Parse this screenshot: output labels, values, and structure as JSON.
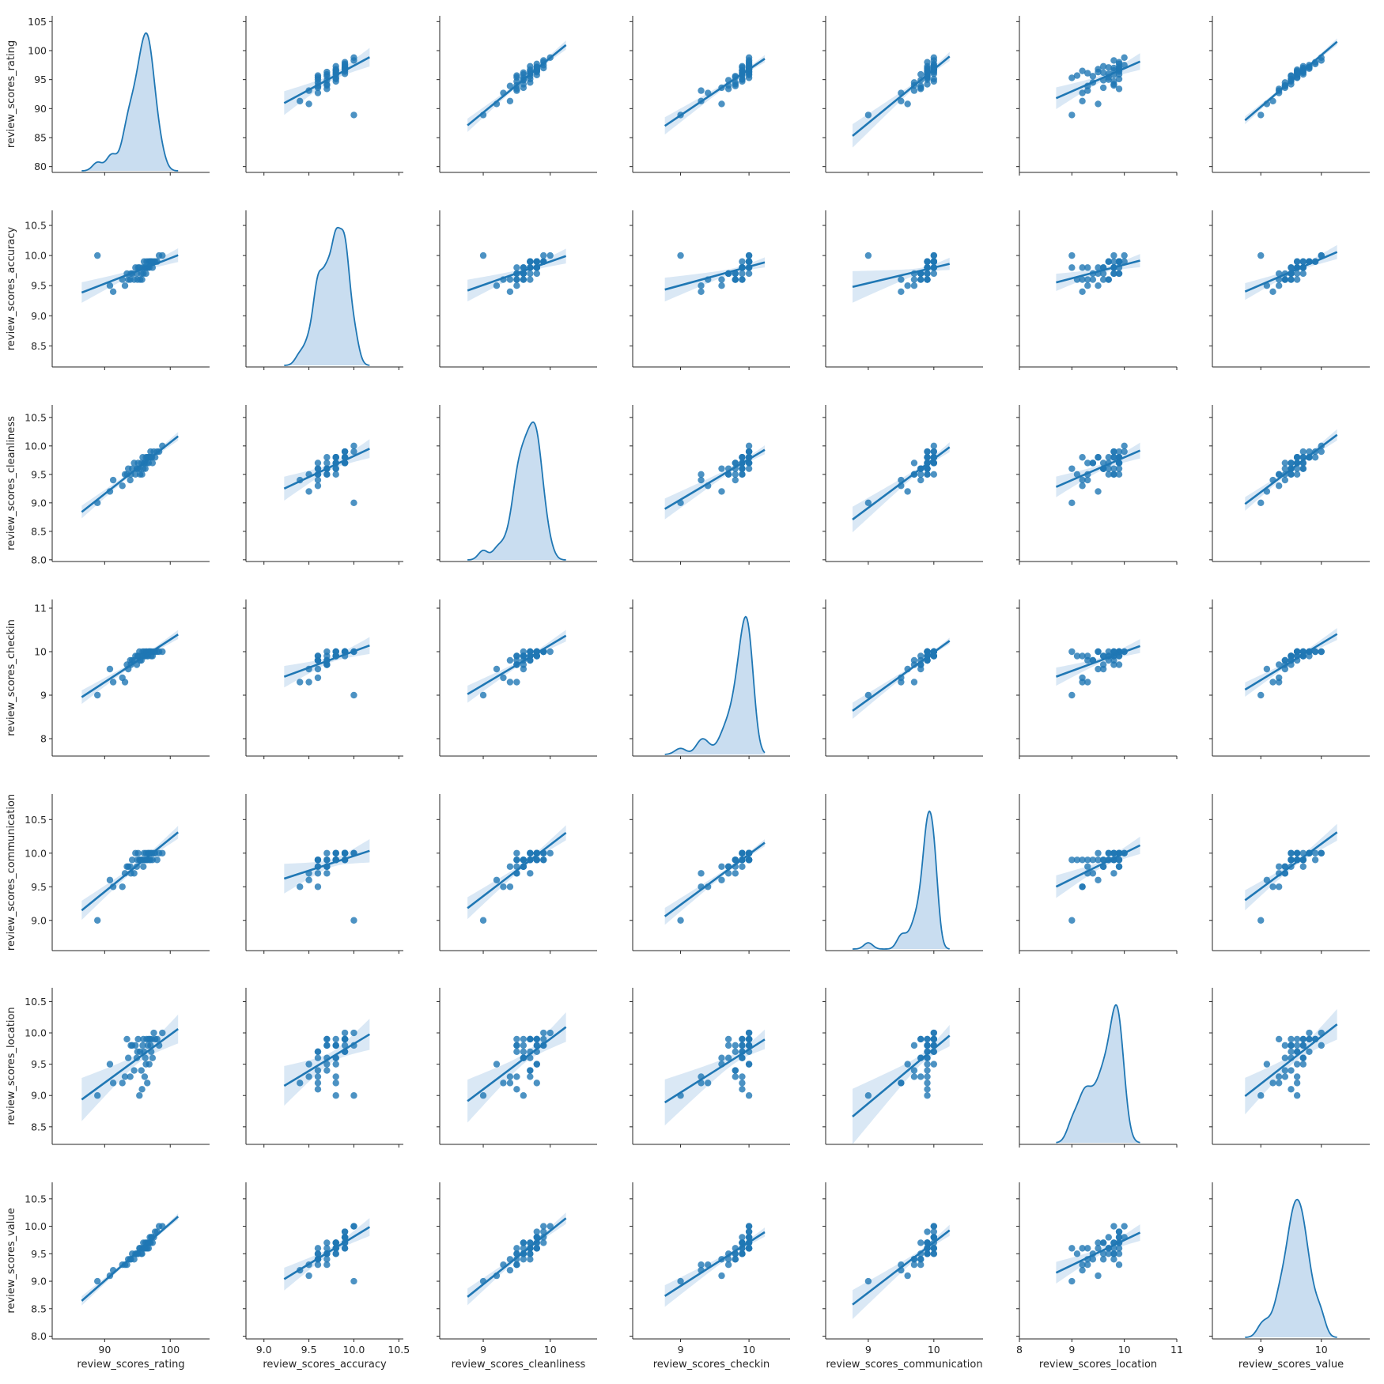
{
  "chart_data": {
    "type": "scatter",
    "subtype": "pairplot",
    "series_color": "#1f77b4",
    "band_color": "#c6dbef",
    "diagonal": "kde",
    "off_diagonal": "scatter-with-regression",
    "variables": [
      {
        "name": "review_scores_rating",
        "label": "review_scores_rating",
        "lim": [
          82,
          106
        ],
        "xticks": [
          90,
          100
        ],
        "yticks": [
          80,
          85,
          90,
          95,
          100,
          105
        ],
        "ylim": [
          79,
          106
        ],
        "ytick_labels": [
          "80",
          "85",
          "90",
          "95",
          "100",
          "105"
        ],
        "xtick_labels": [
          "90",
          "100"
        ]
      },
      {
        "name": "review_scores_accuracy",
        "label": "review_scores_accuracy",
        "lim": [
          8.8,
          10.55
        ],
        "xticks": [
          9.0,
          9.5,
          10.0,
          10.5
        ],
        "yticks": [
          8.5,
          9.0,
          9.5,
          10.0,
          10.5
        ],
        "ylim": [
          8.15,
          10.75
        ],
        "ytick_labels": [
          "8.5",
          "9.0",
          "9.5",
          "10.0",
          "10.5"
        ],
        "xtick_labels": [
          "9.0",
          "9.5",
          "10.0",
          "10.5"
        ]
      },
      {
        "name": "review_scores_cleanliness",
        "label": "review_scores_cleanliness",
        "lim": [
          8.35,
          10.7
        ],
        "xticks": [
          9,
          10
        ],
        "yticks": [
          8.0,
          8.5,
          9.0,
          9.5,
          10.0,
          10.5
        ],
        "ylim": [
          7.97,
          10.72
        ],
        "ytick_labels": [
          "8.0",
          "8.5",
          "9.0",
          "9.5",
          "10.0",
          "10.5"
        ],
        "xtick_labels": [
          "9",
          "10"
        ]
      },
      {
        "name": "review_scores_checkin",
        "label": "review_scores_checkin",
        "lim": [
          8.3,
          10.6
        ],
        "xticks": [
          9,
          10
        ],
        "yticks": [
          8,
          9,
          10,
          11
        ],
        "ylim": [
          7.6,
          11.2
        ],
        "ytick_labels": [
          "8",
          "9",
          "10",
          "11"
        ],
        "xtick_labels": [
          "9",
          "10"
        ]
      },
      {
        "name": "review_scores_communication",
        "label": "review_scores_communication",
        "lim": [
          8.35,
          10.75
        ],
        "xticks": [
          9,
          10
        ],
        "yticks": [
          9.0,
          9.5,
          10.0,
          10.5
        ],
        "ylim": [
          8.55,
          10.88
        ],
        "ytick_labels": [
          "9.0",
          "9.5",
          "10.0",
          "10.5"
        ],
        "xtick_labels": [
          "9",
          "10"
        ]
      },
      {
        "name": "review_scores_location",
        "label": "review_scores_location",
        "lim": [
          8,
          11
        ],
        "xticks": [
          8,
          9,
          10,
          11
        ],
        "yticks": [
          8.5,
          9.0,
          9.5,
          10.0,
          10.5
        ],
        "ylim": [
          8.22,
          10.72
        ],
        "ytick_labels": [
          "8.5",
          "9.0",
          "9.5",
          "10.0",
          "10.5"
        ],
        "xtick_labels": [
          "8",
          "9",
          "10",
          "11"
        ]
      },
      {
        "name": "review_scores_value",
        "label": "review_scores_value",
        "lim": [
          8.2,
          10.8
        ],
        "xticks": [
          9,
          10
        ],
        "yticks": [
          8.0,
          8.5,
          9.0,
          9.5,
          10.0,
          10.5
        ],
        "ylim": [
          7.95,
          10.8
        ],
        "ytick_labels": [
          "8.0",
          "8.5",
          "9.0",
          "9.5",
          "10.0",
          "10.5"
        ],
        "xtick_labels": [
          "9",
          "10"
        ]
      }
    ],
    "points": [
      [
        88.9,
        10.0,
        9.0,
        9.0,
        9.0,
        9.0,
        9.0
      ],
      [
        90.8,
        9.5,
        9.2,
        9.6,
        9.6,
        9.5,
        9.1
      ],
      [
        91.3,
        9.4,
        9.4,
        9.3,
        9.5,
        9.2,
        9.2
      ],
      [
        92.7,
        9.6,
        9.3,
        9.4,
        9.5,
        9.2,
        9.3
      ],
      [
        93.1,
        9.5,
        9.5,
        9.3,
        9.7,
        9.3,
        9.3
      ],
      [
        93.4,
        9.7,
        9.5,
        9.7,
        9.8,
        9.9,
        9.3
      ],
      [
        93.6,
        9.6,
        9.6,
        9.6,
        9.8,
        9.6,
        9.4
      ],
      [
        93.9,
        9.6,
        9.4,
        9.8,
        9.8,
        9.3,
        9.4
      ],
      [
        94.2,
        9.7,
        9.6,
        9.8,
        9.9,
        9.8,
        9.5
      ],
      [
        94.5,
        9.6,
        9.7,
        9.8,
        9.7,
        9.4,
        9.4
      ],
      [
        94.7,
        9.8,
        9.5,
        9.9,
        10.0,
        9.8,
        9.5
      ],
      [
        94.9,
        9.7,
        9.6,
        9.7,
        9.8,
        9.6,
        9.5
      ],
      [
        95.1,
        9.8,
        9.7,
        9.9,
        10.0,
        9.9,
        9.5
      ],
      [
        95.3,
        9.8,
        9.6,
        10.0,
        9.9,
        9.0,
        9.6
      ],
      [
        95.4,
        9.6,
        9.5,
        9.8,
        9.9,
        9.7,
        9.6
      ],
      [
        95.6,
        9.7,
        9.7,
        9.8,
        9.9,
        9.4,
        9.5
      ],
      [
        95.8,
        9.8,
        9.8,
        10.0,
        9.9,
        9.8,
        9.6
      ],
      [
        95.9,
        9.7,
        9.6,
        9.9,
        9.8,
        9.9,
        9.7
      ],
      [
        96.0,
        9.9,
        9.7,
        10.0,
        10.0,
        9.7,
        9.6
      ],
      [
        96.2,
        9.8,
        9.6,
        9.9,
        9.9,
        9.6,
        9.7
      ],
      [
        96.3,
        9.7,
        9.8,
        10.0,
        10.0,
        9.5,
        9.6
      ],
      [
        96.4,
        9.9,
        9.7,
        10.0,
        9.9,
        9.9,
        9.7
      ],
      [
        96.6,
        9.8,
        9.8,
        9.9,
        10.0,
        9.8,
        9.7
      ],
      [
        96.7,
        9.9,
        9.7,
        10.0,
        10.0,
        9.9,
        9.6
      ],
      [
        96.8,
        9.8,
        9.8,
        10.0,
        9.9,
        9.5,
        9.7
      ],
      [
        96.9,
        9.9,
        9.8,
        10.0,
        10.0,
        9.9,
        9.8
      ],
      [
        97.0,
        9.9,
        9.9,
        10.0,
        9.9,
        9.8,
        9.7
      ],
      [
        97.2,
        9.9,
        9.8,
        10.0,
        10.0,
        9.9,
        9.8
      ],
      [
        97.3,
        9.8,
        9.7,
        9.9,
        9.9,
        9.6,
        9.7
      ],
      [
        97.5,
        9.9,
        9.9,
        10.0,
        10.0,
        10.0,
        9.8
      ],
      [
        97.7,
        9.9,
        9.8,
        10.0,
        10.0,
        9.9,
        9.9
      ],
      [
        98.0,
        9.9,
        9.9,
        10.0,
        9.9,
        9.9,
        9.9
      ],
      [
        98.3,
        10.0,
        9.9,
        10.0,
        10.0,
        9.8,
        10.0
      ],
      [
        98.8,
        10.0,
        10.0,
        10.0,
        10.0,
        10.0,
        10.0
      ],
      [
        95.7,
        9.6,
        9.5,
        9.9,
        9.9,
        9.1,
        9.5
      ],
      [
        94.0,
        9.7,
        9.5,
        9.7,
        9.7,
        9.8,
        9.4
      ],
      [
        96.5,
        9.8,
        9.8,
        9.9,
        9.9,
        9.2,
        9.6
      ],
      [
        95.0,
        9.6,
        9.6,
        9.9,
        9.9,
        9.7,
        9.5
      ],
      [
        97.1,
        9.9,
        9.8,
        9.9,
        10.0,
        9.7,
        9.8
      ],
      [
        96.1,
        9.8,
        9.7,
        9.9,
        9.9,
        9.3,
        9.6
      ]
    ]
  }
}
